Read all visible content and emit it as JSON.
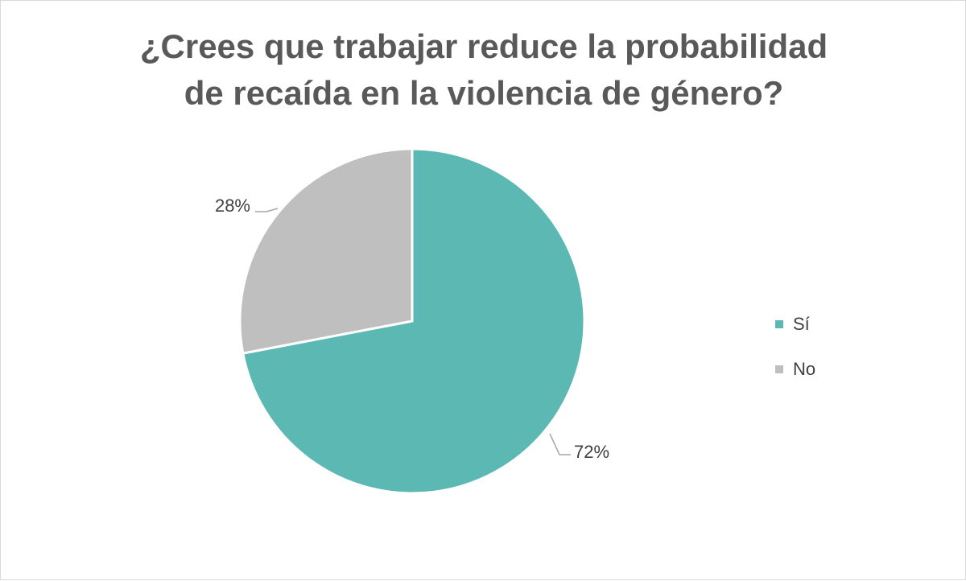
{
  "chart_data": {
    "type": "pie",
    "title_lines": [
      "¿Crees que trabajar reduce la probabilidad",
      "de recaída en la violencia de género?"
    ],
    "categories": [
      "Sí",
      "No"
    ],
    "values": [
      72,
      28
    ],
    "data_labels": [
      "72%",
      "28%"
    ],
    "colors": [
      "#5cb8b2",
      "#bfbfbf"
    ],
    "legend_position": "right"
  }
}
